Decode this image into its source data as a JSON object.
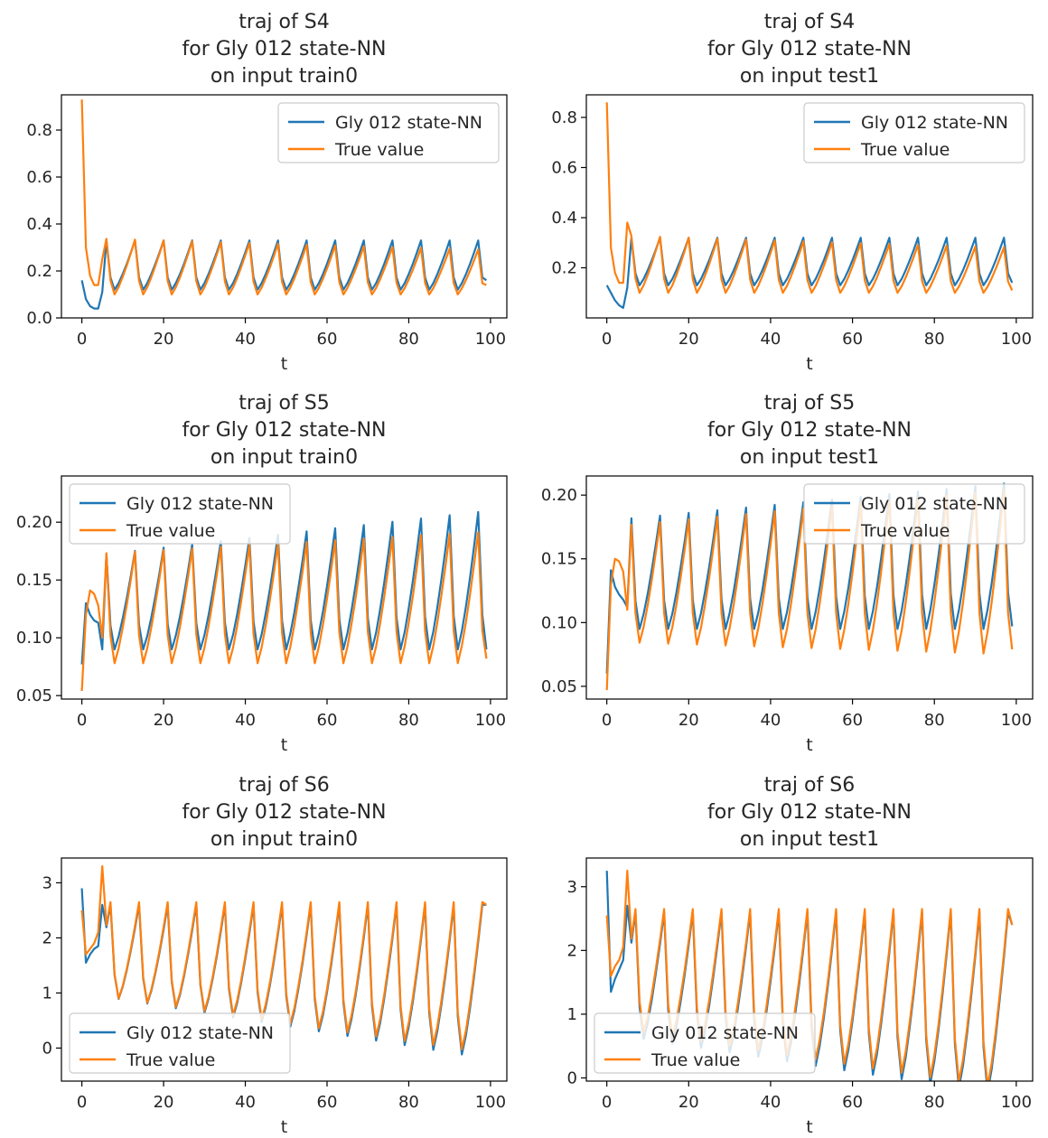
{
  "colors": {
    "model": "#1f77b4",
    "truth": "#ff7f0e",
    "axes": "#000000",
    "legend_border": "#cccccc"
  },
  "legend": {
    "model_label": "Gly 012 state-NN",
    "truth_label": "True value"
  },
  "chart_data": [
    {
      "type": "line",
      "title_lines": [
        "traj of S4",
        "for Gly 012 state-NN",
        "on input train0"
      ],
      "xlabel": "t",
      "xlim": [
        -5,
        104
      ],
      "ylim": [
        0.0,
        0.95
      ],
      "xticks": [
        "0",
        "20",
        "40",
        "60",
        "80",
        "100"
      ],
      "yticks": [
        "0.0",
        "0.2",
        "0.4",
        "0.6",
        "0.8"
      ],
      "legend_position": "top-right",
      "period": 7,
      "series": [
        {
          "name": "Gly 012 state-NN",
          "start": [
            0.16,
            0.08,
            0.05,
            0.04,
            0.04,
            0.11
          ],
          "base": 0.12,
          "peak": 0.33,
          "peak_trend": 0.0,
          "min_trend": 0.0,
          "peak_offset": 6,
          "end": 0.16
        },
        {
          "name": "True value",
          "start": [
            0.93,
            0.3,
            0.18,
            0.14,
            0.14,
            0.25
          ],
          "base": 0.1,
          "peak": 0.34,
          "peak_trend": -0.0005,
          "min_trend": 0.0,
          "peak_offset": 6,
          "end": 0.14
        }
      ]
    },
    {
      "type": "line",
      "title_lines": [
        "traj of S4",
        "for Gly 012 state-NN",
        "on input test1"
      ],
      "xlabel": "t",
      "xlim": [
        -5,
        104
      ],
      "ylim": [
        0.0,
        0.89
      ],
      "xticks": [
        "0",
        "20",
        "40",
        "60",
        "80",
        "100"
      ],
      "yticks": [
        "0.2",
        "0.4",
        "0.6",
        "0.8"
      ],
      "legend_position": "top-right",
      "period": 7,
      "series": [
        {
          "name": "Gly 012 state-NN",
          "start": [
            0.13,
            0.1,
            0.07,
            0.05,
            0.04,
            0.12
          ],
          "base": 0.13,
          "peak": 0.32,
          "peak_trend": 0.0,
          "min_trend": 0.0,
          "peak_offset": 6,
          "end": 0.14
        },
        {
          "name": "True value",
          "start": [
            0.86,
            0.28,
            0.18,
            0.14,
            0.14,
            0.38
          ],
          "base": 0.1,
          "peak": 0.33,
          "peak_trend": -0.0005,
          "min_trend": 0.0,
          "peak_offset": 6,
          "end": 0.11
        }
      ]
    },
    {
      "type": "line",
      "title_lines": [
        "traj of S5",
        "for Gly 012 state-NN",
        "on input train0"
      ],
      "xlabel": "t",
      "xlim": [
        -5,
        104
      ],
      "ylim": [
        0.047,
        0.24
      ],
      "xticks": [
        "0",
        "20",
        "40",
        "60",
        "80",
        "100"
      ],
      "yticks": [
        "0.05",
        "0.10",
        "0.15",
        "0.20"
      ],
      "legend_position": "top-left",
      "period": 7,
      "series": [
        {
          "name": "Gly 012 state-NN",
          "start": [
            0.077,
            0.13,
            0.12,
            0.115,
            0.113,
            0.09
          ],
          "base": 0.09,
          "peak": 0.17,
          "peak_trend": 0.0004,
          "min_trend": 0.0,
          "peak_offset": 6,
          "end": 0.09
        },
        {
          "name": "True value",
          "start": [
            0.054,
            0.12,
            0.141,
            0.138,
            0.128,
            0.1
          ],
          "base": 0.078,
          "peak": 0.172,
          "peak_trend": 0.0002,
          "min_trend": 0.0,
          "peak_offset": 6,
          "end": 0.082
        }
      ]
    },
    {
      "type": "line",
      "title_lines": [
        "traj of S5",
        "for Gly 012 state-NN",
        "on input test1"
      ],
      "xlabel": "t",
      "xlim": [
        -5,
        104
      ],
      "ylim": [
        0.04,
        0.215
      ],
      "xticks": [
        "0",
        "20",
        "40",
        "60",
        "80",
        "100"
      ],
      "yticks": [
        "0.05",
        "0.10",
        "0.15",
        "0.20"
      ],
      "legend_position": "top-right",
      "period": 7,
      "series": [
        {
          "name": "Gly 012 state-NN",
          "start": [
            0.06,
            0.141,
            0.128,
            0.122,
            0.118,
            0.112
          ],
          "base": 0.095,
          "peak": 0.18,
          "peak_trend": 0.0003,
          "min_trend": 0.0,
          "peak_offset": 6,
          "end": 0.097
        },
        {
          "name": "True value",
          "start": [
            0.047,
            0.13,
            0.15,
            0.148,
            0.14,
            0.11
          ],
          "base": 0.085,
          "peak": 0.175,
          "peak_trend": 0.0003,
          "min_trend": -0.0001,
          "peak_offset": 6,
          "end": 0.079
        }
      ]
    },
    {
      "type": "line",
      "title_lines": [
        "traj of S6",
        "for Gly 012 state-NN",
        "on input train0"
      ],
      "xlabel": "t",
      "xlim": [
        -5,
        104
      ],
      "ylim": [
        -0.6,
        3.45
      ],
      "xticks": [
        "0",
        "20",
        "40",
        "60",
        "80",
        "100"
      ],
      "yticks": [
        "0",
        "1",
        "2",
        "3"
      ],
      "legend_position": "bottom-left",
      "period": 7,
      "series": [
        {
          "name": "Gly 012 state-NN",
          "start": [
            2.9,
            1.55,
            1.7,
            1.8,
            1.85,
            2.6
          ],
          "base": 1.0,
          "peak": 2.6,
          "peak_trend": 0.0,
          "min_trend": -0.012,
          "peak_offset": 7,
          "end": 2.6
        },
        {
          "name": "True value",
          "start": [
            2.5,
            1.7,
            1.8,
            1.9,
            2.1,
            3.3
          ],
          "base": 1.0,
          "peak": 2.65,
          "peak_trend": 0.0,
          "min_trend": -0.011,
          "peak_offset": 7,
          "end": 2.6
        }
      ]
    },
    {
      "type": "line",
      "title_lines": [
        "traj of S6",
        "for Gly 012 state-NN",
        "on input test1"
      ],
      "xlabel": "t",
      "xlim": [
        -5,
        104
      ],
      "ylim": [
        -0.05,
        3.45
      ],
      "xticks": [
        "0",
        "20",
        "40",
        "60",
        "80",
        "100"
      ],
      "yticks": [
        "0",
        "1",
        "2",
        "3"
      ],
      "legend_position": "bottom-left",
      "period": 7,
      "series": [
        {
          "name": "Gly 012 state-NN",
          "start": [
            3.25,
            1.35,
            1.55,
            1.7,
            1.85,
            2.7
          ],
          "base": 0.7,
          "peak": 2.6,
          "peak_trend": 0.0,
          "min_trend": -0.01,
          "peak_offset": 7,
          "end": 2.4
        },
        {
          "name": "True value",
          "start": [
            2.55,
            1.6,
            1.75,
            1.85,
            2.05,
            3.25
          ],
          "base": 0.8,
          "peak": 2.65,
          "peak_trend": 0.0,
          "min_trend": -0.01,
          "peak_offset": 7,
          "end": 2.4
        }
      ]
    }
  ]
}
